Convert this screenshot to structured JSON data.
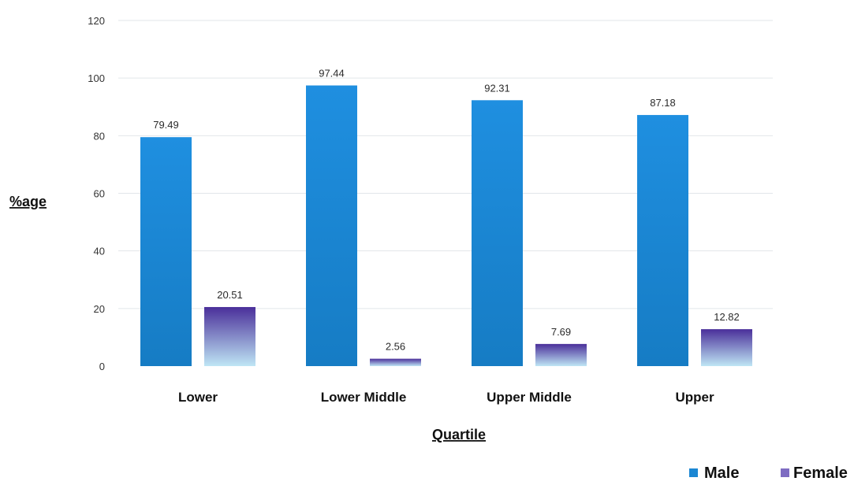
{
  "chart_data": {
    "type": "bar",
    "xlabel": "Quartile",
    "ylabel": "%age",
    "ylim": [
      0,
      120
    ],
    "yticks": [
      0,
      20,
      40,
      60,
      80,
      100,
      120
    ],
    "categories": [
      "Lower",
      "Lower Middle",
      "Upper Middle",
      "Upper"
    ],
    "series": [
      {
        "name": "Male",
        "values": [
          79.49,
          97.44,
          92.31,
          87.18
        ],
        "labels": [
          "79.49",
          "97.44",
          "92.31",
          "87.18"
        ],
        "color": "#1b87d3"
      },
      {
        "name": "Female",
        "values": [
          20.51,
          2.56,
          7.69,
          12.82
        ],
        "labels": [
          "20.51",
          "2.56",
          "7.69",
          "12.82"
        ],
        "color": "#5b3ea6"
      }
    ],
    "gridlines": true,
    "legend_position": "bottom-right"
  }
}
